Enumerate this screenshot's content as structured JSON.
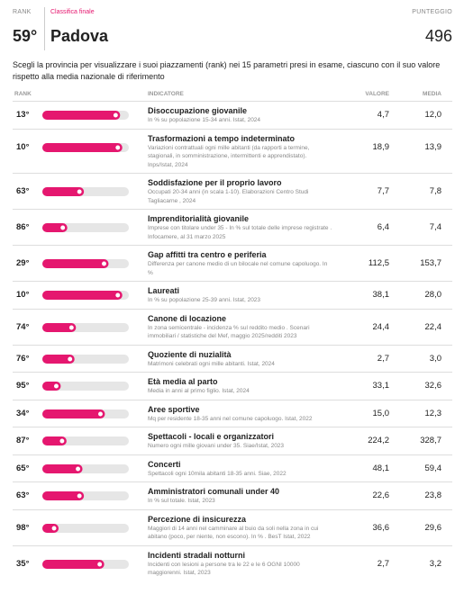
{
  "header": {
    "rank_label": "RANK",
    "ranking_label": "Classifica finale",
    "score_label": "PUNTEGGIO",
    "position": "59°",
    "province": "Padova",
    "score": "496"
  },
  "intro": "Scegli la provincia per visualizzare i suoi piazzamenti (rank) nei 15 parametri presi in esame, ciascuno con il suo valore rispetto alla media nazionale di riferimento",
  "table": {
    "columns": [
      "RANK",
      "INDICATORE",
      "VALORE",
      "MEDIA"
    ],
    "rows": [
      {
        "rank": {
          "value": 13,
          "label": "13°"
        },
        "title": "Disoccupazione giovanile",
        "description": "In % su popolazione 15-34 anni. Istat, 2024",
        "value": "4,7",
        "average": "12,0"
      },
      {
        "rank": {
          "value": 10,
          "label": "10°"
        },
        "title": "Trasformazioni a tempo indeterminato",
        "description": "Variazioni contrattuali ogni mille abitanti (da rapporti a termine, stagionali, in somministrazione, intermittenti e apprendistato). Inps/Istat, 2024",
        "value": "18,9",
        "average": "13,9"
      },
      {
        "rank": {
          "value": 63,
          "label": "63°"
        },
        "title": "Soddisfazione per il proprio lavoro",
        "description": "Occupati 20-34 anni (in scala 1-10). Elaborazioni Centro Studi Tagliacarne , 2024",
        "value": "7,7",
        "average": "7,8"
      },
      {
        "rank": {
          "value": 86,
          "label": "86°"
        },
        "title": "Imprenditorialità giovanile",
        "description": "Imprese con titolare under 35 - In % sul totale delle imprese registrate . Infocamere, al 31 marzo 2025",
        "value": "6,4",
        "average": "7,4"
      },
      {
        "rank": {
          "value": 29,
          "label": "29°"
        },
        "title": "Gap affitti tra centro e periferia",
        "description": "Differenza per canone medio di un bilocale nel comune capoluogo. In %",
        "value": "112,5",
        "average": "153,7"
      },
      {
        "rank": {
          "value": 10,
          "label": "10°"
        },
        "title": "Laureati",
        "description": "In % su popolazione 25-39 anni. Istat, 2023",
        "value": "38,1",
        "average": "28,0"
      },
      {
        "rank": {
          "value": 74,
          "label": "74°"
        },
        "title": "Canone di locazione",
        "description": "In zona semicentrale - incidenza % sul reddito medio . Scenari immobiliari / statistiche del Mef, maggio 2025/redditi 2023",
        "value": "24,4",
        "average": "22,4"
      },
      {
        "rank": {
          "value": 76,
          "label": "76°"
        },
        "title": "Quoziente di nuzialità",
        "description": "Matrimoni celebrati ogni mille abitanti. Istat, 2024",
        "value": "2,7",
        "average": "3,0"
      },
      {
        "rank": {
          "value": 95,
          "label": "95°"
        },
        "title": "Età media al parto",
        "description": "Media in anni al primo figlio. Istat, 2024",
        "value": "33,1",
        "average": "32,6"
      },
      {
        "rank": {
          "value": 34,
          "label": "34°"
        },
        "title": "Aree sportive",
        "description": "Mq per residente 18-35 anni nel comune capoluogo. Istat, 2022",
        "value": "15,0",
        "average": "12,3"
      },
      {
        "rank": {
          "value": 87,
          "label": "87°"
        },
        "title": "Spettacoli - locali e organizzatori",
        "description": "Numero ogni mille giovani under 35. Siae/Istat, 2023",
        "value": "224,2",
        "average": "328,7"
      },
      {
        "rank": {
          "value": 65,
          "label": "65°"
        },
        "title": "Concerti",
        "description": "Spettacoli ogni 10mila abitanti 18-35 anni. Siae, 2022",
        "value": "48,1",
        "average": "59,4"
      },
      {
        "rank": {
          "value": 63,
          "label": "63°"
        },
        "title": "Amministratori comunali under 40",
        "description": "In % sul totale. Istat, 2023",
        "value": "22,6",
        "average": "23,8"
      },
      {
        "rank": {
          "value": 98,
          "label": "98°"
        },
        "title": "Percezione di insicurezza",
        "description": "Maggiori di 14 anni nel camminare al buio da soli nella zona in cui abitano (poco, per niente, non escono). In % . BesT Istat, 2022",
        "value": "36,6",
        "average": "29,6"
      },
      {
        "rank": {
          "value": 35,
          "label": "35°"
        },
        "title": "Incidenti stradali notturni",
        "description": "Incidenti con lesioni a persone tra le 22 e le 6 OGNI 10000 maggiorenni. Istat, 2023",
        "value": "2,7",
        "average": "3,2"
      }
    ]
  }
}
